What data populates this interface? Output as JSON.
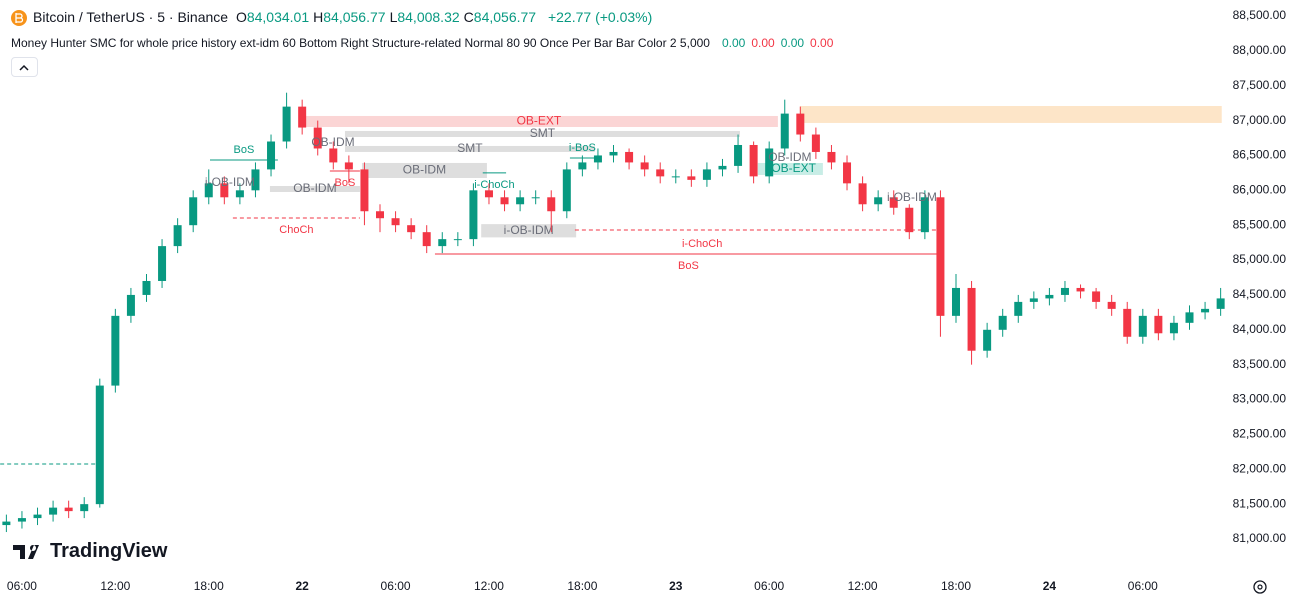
{
  "header": {
    "symbol": "Bitcoin / TetherUS · 5 · Binance",
    "ohlc": [
      {
        "key": "O",
        "value": "84,034.01"
      },
      {
        "key": "H",
        "value": "84,056.77"
      },
      {
        "key": "L",
        "value": "84,008.32"
      },
      {
        "key": "C",
        "value": "84,056.77"
      }
    ],
    "change": "+22.77 (+0.03%)",
    "indicator": "Money Hunter SMC for whole price history ext-idm 60 Bottom Right Structure-related Normal 80 90 Once Per Bar Bar Color 2 5,000",
    "indicator_values": [
      {
        "text": "0.00",
        "color": "#089981"
      },
      {
        "text": "0.00",
        "color": "#f23645"
      },
      {
        "text": "0.00",
        "color": "#089981"
      },
      {
        "text": "0.00",
        "color": "#f23645"
      }
    ],
    "logo": "TradingView"
  },
  "chart_data": {
    "type": "candlestick",
    "up_color": "#089981",
    "down_color": "#f23645",
    "grid": false,
    "xlim": [
      4.59,
      83.28
    ],
    "ylim": [
      80484,
      88729
    ],
    "xticks": [
      {
        "value": 6,
        "label": "06:00"
      },
      {
        "value": 12,
        "label": "12:00"
      },
      {
        "value": 18,
        "label": "18:00"
      },
      {
        "value": 24,
        "label": "22"
      },
      {
        "value": 30,
        "label": "06:00"
      },
      {
        "value": 36,
        "label": "12:00"
      },
      {
        "value": 42,
        "label": "18:00"
      },
      {
        "value": 48,
        "label": "23"
      },
      {
        "value": 54,
        "label": "06:00"
      },
      {
        "value": 60,
        "label": "12:00"
      },
      {
        "value": 66,
        "label": "18:00"
      },
      {
        "value": 72,
        "label": "24"
      },
      {
        "value": 78,
        "label": "06:00"
      }
    ],
    "yticks": [
      {
        "value": 81000,
        "label": "81,000.00"
      },
      {
        "value": 81500,
        "label": "81,500.00"
      },
      {
        "value": 82000,
        "label": "82,000.00"
      },
      {
        "value": 82500,
        "label": "82,500.00"
      },
      {
        "value": 83000,
        "label": "83,000.00"
      },
      {
        "value": 83500,
        "label": "83,500.00"
      },
      {
        "value": 84000,
        "label": "84,000.00"
      },
      {
        "value": 84500,
        "label": "84,500.00"
      },
      {
        "value": 85000,
        "label": "85,000.00"
      },
      {
        "value": 85500,
        "label": "85,500.00"
      },
      {
        "value": 86000,
        "label": "86,000.00"
      },
      {
        "value": 86500,
        "label": "86,500.00"
      },
      {
        "value": 87000,
        "label": "87,000.00"
      },
      {
        "value": 87500,
        "label": "87,500.00"
      },
      {
        "value": 88000,
        "label": "88,000.00"
      },
      {
        "value": 88500,
        "label": "88,500.00"
      }
    ],
    "x": [
      5,
      6,
      7,
      8,
      9,
      10,
      11,
      12,
      13,
      14,
      15,
      16,
      17,
      18,
      19,
      20,
      21,
      22,
      23,
      24,
      25,
      26,
      27,
      28,
      29,
      30,
      31,
      32,
      33,
      34,
      35,
      36,
      37,
      38,
      39,
      40,
      41,
      42,
      43,
      44,
      45,
      46,
      47,
      48,
      49,
      50,
      51,
      52,
      53,
      54,
      55,
      56,
      57,
      58,
      59,
      60,
      61,
      62,
      63,
      64,
      65,
      66,
      67,
      68,
      69,
      70,
      71,
      72,
      73,
      74,
      75,
      76,
      77,
      78,
      79,
      80,
      81,
      82,
      83
    ],
    "open": [
      81200,
      81250,
      81300,
      81350,
      81450,
      81400,
      81500,
      83200,
      84200,
      84500,
      84700,
      85200,
      85500,
      85900,
      86100,
      85900,
      86000,
      86300,
      86700,
      87200,
      86900,
      86600,
      86400,
      86300,
      85700,
      85600,
      85500,
      85400,
      85200,
      85300,
      85300,
      86000,
      85900,
      85800,
      85900,
      85900,
      85700,
      86300,
      86400,
      86500,
      86550,
      86400,
      86300,
      86200,
      86200,
      86150,
      86300,
      86350,
      86650,
      86200,
      86600,
      87100,
      86800,
      86550,
      86400,
      86100,
      85800,
      85900,
      85750,
      85400,
      85900,
      84200,
      84600,
      83700,
      84000,
      84200,
      84400,
      84450,
      84500,
      84600,
      84550,
      84400,
      84300,
      83900,
      84200,
      83950,
      84100,
      84250,
      84300
    ],
    "high": [
      81350,
      81400,
      81450,
      81550,
      81550,
      81600,
      83300,
      84300,
      84600,
      84800,
      85300,
      85600,
      86000,
      86300,
      86200,
      86100,
      86400,
      86800,
      87400,
      87300,
      87000,
      86700,
      86500,
      86400,
      85800,
      85700,
      85600,
      85500,
      85400,
      85400,
      86100,
      86100,
      86000,
      86000,
      86000,
      86000,
      86400,
      86500,
      86600,
      86650,
      86600,
      86500,
      86400,
      86300,
      86300,
      86400,
      86450,
      86800,
      86700,
      86700,
      87300,
      87200,
      86900,
      86650,
      86500,
      86200,
      86000,
      86000,
      85800,
      86000,
      86000,
      84800,
      84700,
      84100,
      84300,
      84500,
      84550,
      84600,
      84700,
      84650,
      84600,
      84500,
      84400,
      84300,
      84300,
      84200,
      84350,
      84400,
      84600
    ],
    "low": [
      81100,
      81150,
      81200,
      81250,
      81300,
      81300,
      81450,
      83100,
      84100,
      84400,
      84600,
      85100,
      85400,
      85800,
      85800,
      85800,
      85900,
      86200,
      86600,
      86800,
      86500,
      86300,
      86100,
      85500,
      85400,
      85400,
      85300,
      85100,
      85100,
      85200,
      85200,
      85800,
      85700,
      85700,
      85800,
      85400,
      85600,
      86200,
      86300,
      86400,
      86300,
      86200,
      86100,
      86100,
      86050,
      86050,
      86200,
      86250,
      86100,
      86100,
      86500,
      86700,
      86450,
      86300,
      86000,
      85700,
      85700,
      85650,
      85300,
      85300,
      83900,
      84100,
      83500,
      83600,
      83900,
      84100,
      84300,
      84350,
      84400,
      84450,
      84300,
      84200,
      83800,
      83800,
      83850,
      83850,
      84000,
      84150,
      84200
    ],
    "close": [
      81250,
      81300,
      81350,
      81450,
      81400,
      81500,
      83200,
      84200,
      84500,
      84700,
      85200,
      85500,
      85900,
      86100,
      85900,
      86000,
      86300,
      86700,
      87200,
      86900,
      86600,
      86400,
      86300,
      85700,
      85600,
      85500,
      85400,
      85200,
      85300,
      85300,
      86000,
      85900,
      85800,
      85900,
      85900,
      85700,
      86300,
      86400,
      86500,
      86550,
      86400,
      86300,
      86200,
      86200,
      86150,
      86300,
      86350,
      86650,
      86200,
      86600,
      87100,
      86800,
      86550,
      86400,
      86100,
      85800,
      85900,
      85750,
      85400,
      85900,
      84200,
      84600,
      83700,
      84000,
      84200,
      84400,
      84450,
      84500,
      84600,
      84550,
      84400,
      84300,
      83900,
      84200,
      83950,
      84100,
      84250,
      84300,
      84450
    ],
    "annotations": [
      {
        "kind": "box",
        "x": [
          23.86,
          54.56
        ],
        "y": [
          86908,
          87066
        ],
        "color": "#fbd5d5",
        "label": "OB-EXT",
        "label_color": "#f23645"
      },
      {
        "kind": "box",
        "x": [
          55.97,
          83.07
        ],
        "y": [
          86966,
          87209
        ],
        "color": "#fde5c8"
      },
      {
        "kind": "box",
        "x": [
          26.75,
          52.12
        ],
        "y": [
          86765,
          86851
        ],
        "color": "#dedede",
        "label": "SMT",
        "label_color": "#6a6d78"
      },
      {
        "kind": "box",
        "x": [
          26.75,
          42.8
        ],
        "y": [
          86550,
          86636
        ],
        "color": "#dedede",
        "label": "SMT",
        "label_color": "#6a6d78"
      },
      {
        "kind": "box",
        "x": [
          27.84,
          35.87
        ],
        "y": [
          86177,
          86392
        ],
        "color": "#dedede",
        "label": "OB-IDM",
        "label_color": "#6a6d78"
      },
      {
        "kind": "box",
        "x": [
          21.93,
          27.71
        ],
        "y": [
          85976,
          86062
        ],
        "color": "#dedede",
        "label": "OB-IDM",
        "label_color": "#6a6d78"
      },
      {
        "kind": "box",
        "x": [
          35.5,
          41.6
        ],
        "y": [
          85325,
          85515
        ],
        "color": "#dedede",
        "label": "i-OB-IDM",
        "label_color": "#6a6d78"
      },
      {
        "kind": "box",
        "x": [
          53.27,
          57.45
        ],
        "y": [
          86220,
          86392
        ],
        "color": "#c8ede6",
        "label": "i-OB-EXT",
        "label_color": "#089981"
      },
      {
        "kind": "text",
        "x": 25.98,
        "y": 86679,
        "label": "OB-IDM",
        "label_color": "#6a6d78"
      },
      {
        "kind": "text",
        "x": 19.36,
        "y": 86105,
        "label": "i-OB-IDM",
        "label_color": "#6a6d78"
      },
      {
        "kind": "text",
        "x": 55.33,
        "y": 86464,
        "label": "OB-IDM",
        "label_color": "#6a6d78"
      },
      {
        "kind": "text",
        "x": 63.17,
        "y": 85890,
        "label": "i-OB-IDM",
        "label_color": "#6a6d78"
      },
      {
        "kind": "line",
        "x": [
          18.08,
          22.44
        ],
        "y": 86435,
        "color": "#089981",
        "dashed": false,
        "label": "BoS",
        "label_pos": "above"
      },
      {
        "kind": "line",
        "x": [
          19.55,
          27.71
        ],
        "y": 85603,
        "color": "#f23645",
        "dashed": true,
        "label": "ChoCh",
        "label_pos": "below"
      },
      {
        "kind": "line",
        "x": [
          25.78,
          27.71
        ],
        "y": 86277,
        "color": "#f23645",
        "dashed": false,
        "label": "BoS",
        "label_pos": "below"
      },
      {
        "kind": "line",
        "x": [
          35.6,
          37.1
        ],
        "y": 86250,
        "color": "#089981",
        "dashed": false,
        "label": "i-ChoCh",
        "label_pos": "below"
      },
      {
        "kind": "line",
        "x": [
          41.2,
          42.8
        ],
        "y": 86463,
        "color": "#089981",
        "dashed": false,
        "label": "i-BoS",
        "label_pos": "above"
      },
      {
        "kind": "line",
        "x": [
          41.52,
          65.09
        ],
        "y": 85431,
        "color": "#f23645",
        "dashed": true
      },
      {
        "kind": "line",
        "x": [
          34.3,
          65.09
        ],
        "y": 85087,
        "color": "#f23645",
        "dashed": false,
        "label": "i-ChoCh",
        "label_pos": "above"
      },
      {
        "kind": "line",
        "x": [
          32.53,
          65.09
        ],
        "y": 85087,
        "color": "#f23645",
        "dashed": false,
        "label": "BoS",
        "label_pos": "below"
      },
      {
        "kind": "line",
        "x": [
          4.6,
          11.33
        ],
        "y": 82076,
        "color": "#089981",
        "dashed": true
      }
    ]
  }
}
